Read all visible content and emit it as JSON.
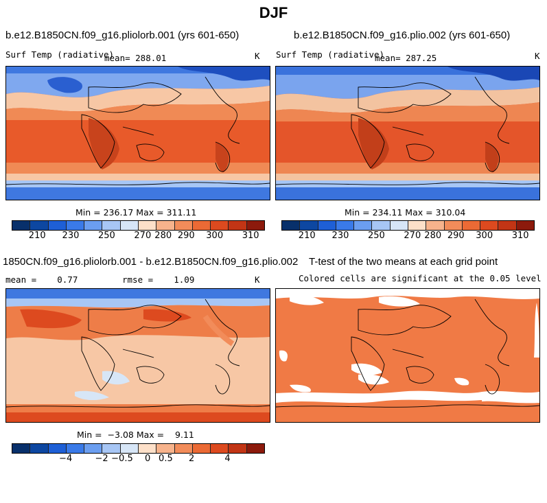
{
  "page_title": "DJF",
  "panels": [
    {
      "title": "b.e12.B1850CN.f09_g16.pliolorb.001 (yrs 601-650)",
      "left_label": "Surf Temp (radiative)",
      "mean_label": "mean= 288.01",
      "units": "K",
      "minmax": "Min = 236.17 Max = 311.11"
    },
    {
      "title": "b.e12.B1850CN.f09_g16.plio.002 (yrs 601-650)",
      "left_label": "Surf Temp (radiative)",
      "mean_label": "mean= 287.25",
      "units": "K",
      "minmax": "Min = 234.11 Max = 310.04"
    },
    {
      "title": "1850CN.f09_g16.pliolorb.001 - b.e12.B1850CN.f09_g16.plio.002",
      "mean_label": "mean =    0.77",
      "rmse_label": "rmse =    1.09",
      "units": "K",
      "minmax": "Min =  −3.08 Max =    9.11"
    },
    {
      "title": "T-test of the two means at each grid point",
      "subtitle": "Colored cells are significant at the 0.05 level"
    }
  ],
  "colorbar_abs": {
    "colors": [
      "#08306b",
      "#0d47a1",
      "#1e5fd6",
      "#3a7ae8",
      "#6b9ef0",
      "#a7c6f5",
      "#d7e6f7",
      "#fde0c9",
      "#f7b38c",
      "#f28c5a",
      "#eb6a35",
      "#dd4a1f",
      "#c23515",
      "#8c1a0c"
    ],
    "tick_labels": [
      "210",
      "230",
      "250",
      "270",
      "280",
      "290",
      "300",
      "310"
    ]
  },
  "colorbar_diff": {
    "colors": [
      "#08306b",
      "#0d47a1",
      "#1e5fd6",
      "#3a7ae8",
      "#6b9ef0",
      "#a7c6f5",
      "#d7e6f7",
      "#fde0c9",
      "#f7b38c",
      "#f28c5a",
      "#eb6a35",
      "#dd4a1f",
      "#c23515",
      "#8c1a0c"
    ],
    "tick_labels": [
      "−4",
      "−2",
      "−0.5",
      "0",
      "0.5",
      "2",
      "4"
    ]
  },
  "ttest_fill_color": "#f07a45"
}
